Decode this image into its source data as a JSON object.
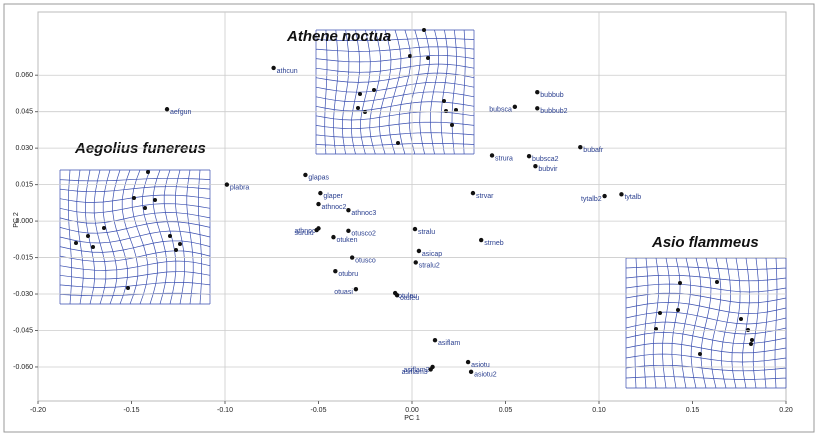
{
  "chart_data": {
    "type": "scatter",
    "x_label": "PC 1",
    "y_label": "PC 2",
    "annotations": [
      "Athene noctua",
      "Aegolius funereus",
      "Asio flammeus"
    ],
    "labels": [
      "athcun",
      "aefgun",
      "plabra",
      "glapas",
      "glaper",
      "athnoc2",
      "athnoc3",
      "athnoc",
      "surulu",
      "otusco2",
      "otuken",
      "stralu",
      "asicap",
      "otusco",
      "stralu2",
      "otubru",
      "otuasi",
      "otuleu",
      "otuleu",
      "asiflam",
      "asiflam2",
      "asiflam3",
      "asiotu",
      "asiotu2",
      "strneb",
      "strvar",
      "strura",
      "bubsca",
      "bubbub",
      "bubbub2",
      "bubsca2",
      "bubvir",
      "bubafr",
      "tytalb",
      "tytalb2"
    ],
    "x": [
      -0.074,
      -0.131,
      -0.099,
      -0.057,
      -0.049,
      -0.05,
      -0.034,
      -0.05,
      -0.051,
      -0.034,
      -0.042,
      0.0016,
      0.0037,
      -0.032,
      0.002,
      -0.041,
      -0.03,
      -0.009,
      -0.008,
      0.0123,
      0.011,
      0.01,
      0.03,
      0.0316,
      0.037,
      0.0326,
      0.0428,
      0.055,
      0.067,
      0.067,
      0.0626,
      0.066,
      0.09,
      0.112,
      0.103
    ],
    "values": [
      0.063,
      0.046,
      0.015,
      0.019,
      0.0115,
      0.007,
      0.0045,
      -0.003,
      -0.0037,
      -0.004,
      -0.0066,
      -0.0033,
      -0.0123,
      -0.015,
      -0.017,
      -0.0206,
      -0.028,
      -0.0296,
      -0.0305,
      -0.049,
      -0.06,
      -0.061,
      -0.058,
      -0.062,
      -0.0078,
      0.0115,
      0.027,
      0.047,
      0.053,
      0.0464,
      0.0267,
      0.0226,
      0.0304,
      0.011,
      0.0103
    ],
    "color": "#111111",
    "label_color": "#2a3f8f",
    "xlim": [
      -0.2,
      0.2
    ],
    "ylim": [
      -0.074,
      0.086
    ],
    "xticks": [
      {
        "value": -0.2,
        "label": "-0.20"
      },
      -0.15,
      {
        "value": -0.1,
        "label": "-0.10"
      },
      -0.05,
      {
        "value": 0,
        "label": "0.00"
      },
      0.05,
      {
        "value": 0.1,
        "label": "0.10"
      },
      0.15,
      {
        "value": 0.2,
        "label": "0.20"
      }
    ],
    "yticks": [
      {
        "value": -0.06,
        "label": "-0.060"
      },
      -0.045,
      {
        "value": -0.03,
        "label": "-0.030"
      },
      -0.015,
      {
        "value": 0,
        "label": "0.000"
      },
      0.015,
      {
        "value": 0.03,
        "label": "0.030"
      },
      0.045,
      {
        "value": 0.06,
        "label": "0.060"
      }
    ],
    "grid": true
  }
}
